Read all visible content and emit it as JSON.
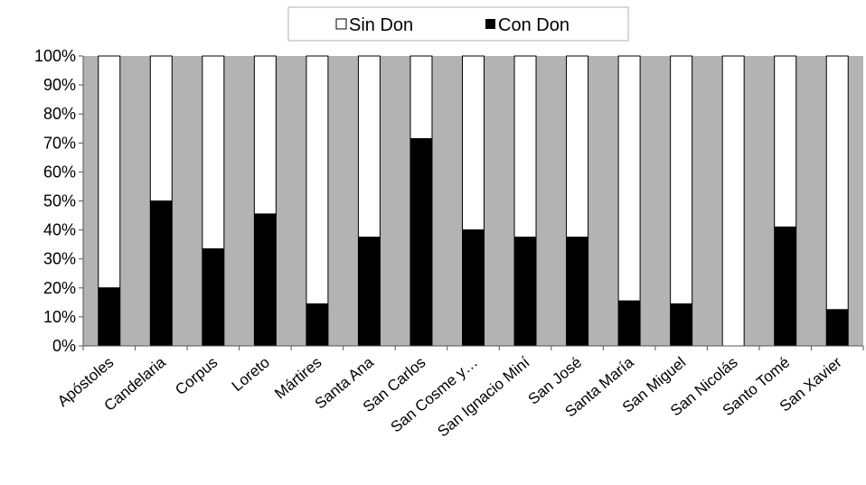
{
  "chart_data": {
    "type": "bar",
    "stacked": true,
    "percent": true,
    "categories": [
      "Apóstoles",
      "Candelaria",
      "Corpus",
      "Loreto",
      "Mártires",
      "Santa Ana",
      "San Carlos",
      "San Cosme y…",
      "San Ignacio Miní",
      "San José",
      "Santa María",
      "San Miguel",
      "San Nicolás",
      "Santo Tomé",
      "San Xavier"
    ],
    "series": [
      {
        "name": "Con Don",
        "color": "#000000",
        "values": [
          20,
          50,
          33.5,
          45.5,
          14.5,
          37.5,
          71.5,
          40,
          37.5,
          37.5,
          15.5,
          14.5,
          0,
          41,
          12.5
        ]
      },
      {
        "name": "Sin Don",
        "color": "#ffffff",
        "values": [
          80,
          50,
          66.5,
          54.5,
          85.5,
          62.5,
          28.5,
          60,
          62.5,
          62.5,
          84.5,
          85.5,
          100,
          59,
          87.5
        ]
      }
    ],
    "ylim": [
      0,
      100
    ],
    "yticks": [
      "0%",
      "10%",
      "20%",
      "30%",
      "40%",
      "50%",
      "60%",
      "70%",
      "80%",
      "90%",
      "100%"
    ],
    "legend_position": "top",
    "legend_order": [
      "Sin Don",
      "Con Don"
    ],
    "plot_background": "#b3b3b3",
    "grid": false
  }
}
